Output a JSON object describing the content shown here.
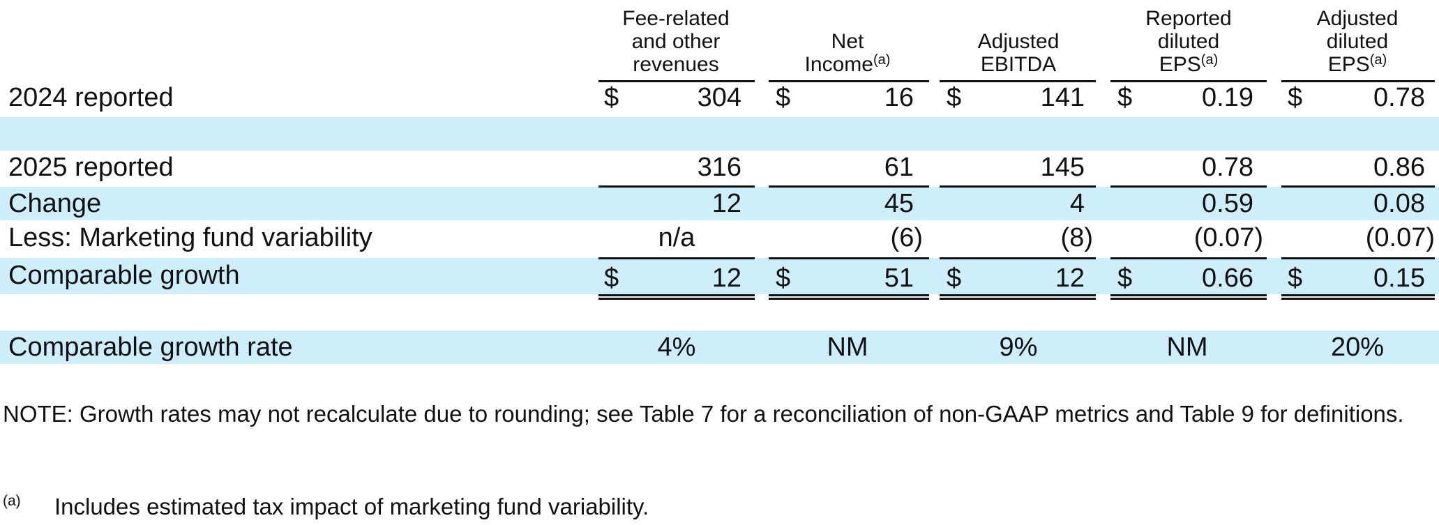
{
  "headers": {
    "col1": [
      "Fee-related",
      "and other",
      "revenues"
    ],
    "col2": [
      "Net",
      "Income"
    ],
    "col2_sup": "(a)",
    "col3": [
      "Adjusted",
      "EBITDA"
    ],
    "col4": [
      "Reported",
      "diluted",
      "EPS"
    ],
    "col4_sup": "(a)",
    "col5": [
      "Adjusted",
      "diluted",
      "EPS"
    ],
    "col5_sup": "(a)"
  },
  "currency_symbol": "$",
  "rows": {
    "r2024": {
      "label": "2024 reported",
      "values": [
        "304",
        "16",
        "141",
        "0.19",
        "0.78"
      ]
    },
    "r2025": {
      "label": "2025 reported",
      "values": [
        "316",
        "61",
        "145",
        "0.78",
        "0.86"
      ]
    },
    "change": {
      "label": "Change",
      "values": [
        "12",
        "45",
        "4",
        "0.59",
        "0.08"
      ]
    },
    "less": {
      "label": "Less: Marketing fund variability",
      "values": [
        "n/a",
        "(6)",
        "(8)",
        "(0.07)",
        "(0.07)"
      ]
    },
    "comparable": {
      "label": "Comparable growth",
      "values": [
        "12",
        "51",
        "12",
        "0.66",
        "0.15"
      ]
    },
    "rate": {
      "label": "Comparable growth rate",
      "values": [
        "4%",
        "NM",
        "9%",
        "NM",
        "20%"
      ]
    }
  },
  "note": "NOTE:  Growth rates may not recalculate due to rounding; see Table 7 for a reconciliation of non-GAAP metrics and Table 9 for definitions.",
  "footnote": {
    "mark": "(a)",
    "text": "Includes estimated tax impact of marketing fund variability."
  },
  "colors": {
    "band": "#cfeefc",
    "text": "#111111"
  }
}
